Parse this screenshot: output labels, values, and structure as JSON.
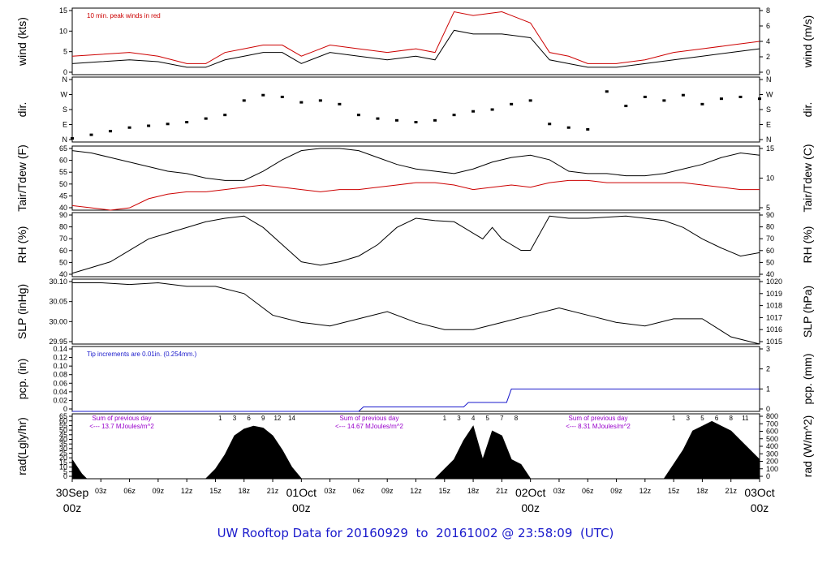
{
  "footer": {
    "prefix": "UW Rooftop Data for",
    "start": "20160929",
    "to": "to",
    "end": "20161002 @ 23:58:09",
    "tz": "(UTC)"
  },
  "colors": {
    "text_red": "#cc0000",
    "purple": "#9900cc",
    "blue": "#1a1acc"
  },
  "chart_data": [
    {
      "type": "line",
      "panel": "wind",
      "ylabel_left": "wind (kts)",
      "ylabel_right": "wind (m/s)",
      "left_ticks": [
        "0",
        "5",
        "10",
        "15"
      ],
      "right_ticks": [
        "0",
        "2",
        "4",
        "6",
        "8"
      ],
      "ylim": [
        0,
        18
      ],
      "annotation": "10 min. peak winds in red",
      "series": [
        {
          "color": "#000000",
          "x": [
            0,
            3,
            6,
            9,
            12,
            14,
            16,
            18,
            20,
            22,
            24,
            27,
            30,
            33,
            36,
            38,
            40,
            42,
            45,
            48,
            50,
            52,
            54,
            57,
            60,
            63,
            66,
            69,
            72
          ],
          "values": [
            3,
            3.5,
            4,
            3.5,
            2,
            2,
            4,
            5,
            6,
            6,
            3,
            6,
            5,
            4,
            5,
            4,
            12,
            11,
            11,
            10,
            4,
            3,
            2,
            2,
            3,
            4,
            5,
            6,
            7
          ]
        },
        {
          "color": "#cc0000",
          "name": "10 min. peak winds",
          "x": [
            0,
            3,
            6,
            9,
            12,
            14,
            16,
            18,
            20,
            22,
            24,
            27,
            30,
            33,
            36,
            38,
            40,
            42,
            45,
            48,
            50,
            52,
            54,
            57,
            60,
            63,
            66,
            69,
            72
          ],
          "values": [
            5,
            5.5,
            6,
            5,
            3,
            3,
            6,
            7,
            8,
            8,
            5,
            8,
            7,
            6,
            7,
            6,
            17,
            16,
            17,
            14,
            6,
            5,
            3,
            3,
            4,
            6,
            7,
            8,
            9
          ]
        }
      ]
    },
    {
      "type": "scatter",
      "panel": "dir",
      "ylabel_left": "dir.",
      "ylabel_right": "dir.",
      "left_ticks": [
        "N",
        "E",
        "S",
        "W",
        "N"
      ],
      "right_ticks": [
        "N",
        "E",
        "S",
        "W",
        "N"
      ],
      "ylim": [
        0,
        360
      ],
      "series": [
        {
          "color": "#000000",
          "x": [
            0,
            2,
            4,
            6,
            8,
            10,
            12,
            14,
            16,
            18,
            20,
            22,
            24,
            26,
            28,
            30,
            32,
            34,
            36,
            38,
            40,
            42,
            44,
            46,
            48,
            50,
            52,
            54,
            56,
            58,
            60,
            62,
            64,
            66,
            68,
            70,
            72
          ],
          "values": [
            20,
            40,
            60,
            80,
            90,
            100,
            110,
            130,
            150,
            230,
            260,
            250,
            220,
            230,
            210,
            150,
            130,
            120,
            110,
            120,
            150,
            170,
            180,
            210,
            230,
            100,
            80,
            70,
            280,
            200,
            250,
            230,
            260,
            210,
            240,
            250,
            240
          ]
        }
      ]
    },
    {
      "type": "line",
      "panel": "temp",
      "ylabel_left": "Tair/Tdew (F)",
      "ylabel_right": "Tair/Tdew (C)",
      "left_ticks": [
        "40",
        "45",
        "50",
        "55",
        "60",
        "65"
      ],
      "right_ticks": [
        "5",
        "10",
        "15"
      ],
      "ylim": [
        38,
        66
      ],
      "series": [
        {
          "color": "#000000",
          "name": "Tair",
          "x": [
            0,
            2,
            4,
            6,
            8,
            10,
            12,
            14,
            16,
            18,
            20,
            22,
            24,
            26,
            28,
            30,
            32,
            34,
            36,
            38,
            40,
            42,
            44,
            46,
            48,
            50,
            52,
            54,
            56,
            58,
            60,
            62,
            64,
            66,
            68,
            70,
            72
          ],
          "values": [
            64,
            63,
            61,
            59,
            57,
            55,
            54,
            52,
            51,
            51,
            55,
            60,
            64,
            65,
            65,
            64,
            61,
            58,
            56,
            55,
            54,
            56,
            59,
            61,
            62,
            60,
            55,
            54,
            54,
            53,
            53,
            54,
            56,
            58,
            61,
            63,
            62
          ]
        },
        {
          "color": "#cc0000",
          "name": "Tdew",
          "x": [
            0,
            2,
            4,
            6,
            8,
            10,
            12,
            14,
            16,
            18,
            20,
            22,
            24,
            26,
            28,
            30,
            32,
            34,
            36,
            38,
            40,
            42,
            44,
            46,
            48,
            50,
            52,
            54,
            56,
            58,
            60,
            62,
            64,
            66,
            68,
            70,
            72
          ],
          "values": [
            40,
            39,
            38,
            39,
            43,
            45,
            46,
            46,
            47,
            48,
            49,
            48,
            47,
            46,
            47,
            47,
            48,
            49,
            50,
            50,
            49,
            47,
            48,
            49,
            48,
            50,
            51,
            51,
            50,
            50,
            50,
            50,
            50,
            49,
            48,
            47,
            47
          ]
        }
      ]
    },
    {
      "type": "line",
      "panel": "rh",
      "ylabel_left": "RH (%)",
      "ylabel_right": "RH (%)",
      "left_ticks": [
        "40",
        "50",
        "60",
        "70",
        "80",
        "90"
      ],
      "right_ticks": [
        "40",
        "50",
        "60",
        "70",
        "80",
        "90"
      ],
      "ylim": [
        37,
        93
      ],
      "series": [
        {
          "color": "#000000",
          "x": [
            0,
            2,
            4,
            6,
            8,
            10,
            12,
            14,
            16,
            18,
            19,
            20,
            22,
            24,
            26,
            28,
            30,
            32,
            34,
            36,
            38,
            40,
            41,
            42,
            43,
            44,
            45,
            46,
            47,
            48,
            50,
            52,
            54,
            56,
            58,
            60,
            62,
            64,
            66,
            68,
            70,
            72
          ],
          "values": [
            40,
            45,
            50,
            60,
            70,
            75,
            80,
            85,
            88,
            90,
            85,
            80,
            65,
            50,
            47,
            50,
            55,
            65,
            80,
            88,
            86,
            85,
            80,
            75,
            70,
            80,
            70,
            65,
            60,
            60,
            90,
            88,
            88,
            89,
            90,
            88,
            86,
            80,
            70,
            62,
            55,
            58
          ]
        }
      ]
    },
    {
      "type": "line",
      "panel": "slp",
      "ylabel_left": "SLP (inHg)",
      "ylabel_right": "SLP (hPa)",
      "left_ticks": [
        "29.95",
        "30.00",
        "30.05",
        "30.10"
      ],
      "right_ticks": [
        "1015",
        "1016",
        "1017",
        "1018",
        "1019",
        "1020"
      ],
      "ylim": [
        29.95,
        30.13
      ],
      "series": [
        {
          "color": "#000000",
          "x": [
            0,
            3,
            6,
            9,
            12,
            15,
            18,
            21,
            24,
            27,
            30,
            33,
            36,
            39,
            42,
            45,
            48,
            51,
            54,
            57,
            60,
            63,
            66,
            69,
            72
          ],
          "values": [
            30.12,
            30.12,
            30.115,
            30.12,
            30.11,
            30.11,
            30.09,
            30.03,
            30.01,
            30.0,
            30.02,
            30.04,
            30.01,
            29.99,
            29.99,
            30.01,
            30.03,
            30.05,
            30.03,
            30.01,
            30.0,
            30.02,
            30.02,
            29.97,
            29.95
          ]
        }
      ]
    },
    {
      "type": "line",
      "panel": "pcp",
      "ylabel_left": "pcp. (in)",
      "ylabel_right": "pcp. (mm)",
      "left_ticks": [
        "0",
        "0.02",
        "0.04",
        "0.06",
        "0.08",
        "0.10",
        "0.12",
        "0.14"
      ],
      "right_ticks": [
        "0",
        "1",
        "2",
        "3"
      ],
      "ylim": [
        0,
        0.145
      ],
      "annotation": "Tip increments are 0.01in. (0.254mm.)",
      "series": [
        {
          "color": "#1a1acc",
          "x": [
            0,
            30,
            30.5,
            34,
            34.5,
            41,
            41.5,
            43,
            43.5,
            45.5,
            46,
            46.3,
            72
          ],
          "values": [
            0,
            0,
            0.01,
            0.01,
            0.01,
            0.01,
            0.02,
            0.02,
            0.02,
            0.02,
            0.05,
            0.05,
            0.05
          ]
        }
      ]
    },
    {
      "type": "area",
      "panel": "rad",
      "ylabel_left": "rad(Lgly/hr)",
      "ylabel_right": "rad (W/m^2)",
      "left_ticks": [
        "0",
        "5",
        "10",
        "15",
        "20",
        "25",
        "30",
        "35",
        "40",
        "45",
        "50",
        "55",
        "60",
        "65"
      ],
      "right_ticks": [
        "0",
        "100",
        "200",
        "300",
        "400",
        "500",
        "600",
        "700",
        "800"
      ],
      "ylim": [
        0,
        68
      ],
      "day_sums": [
        {
          "label": "Sum of previous day",
          "value": "<--- 13.7 MJoules/m^2"
        },
        {
          "label": "Sum of previous day",
          "value": "<--- 14.67 MJoules/m^2"
        },
        {
          "label": "Sum of previous day",
          "value": "<--- 8.31 MJoules/m^2"
        }
      ],
      "hour_marks": [
        [
          "1",
          "3",
          "6",
          "9",
          "12",
          "14"
        ],
        [
          "1",
          "3",
          "4",
          "5",
          "7",
          "8"
        ],
        [
          "1",
          "3",
          "5",
          "6",
          "8",
          "11"
        ]
      ],
      "series": [
        {
          "color": "#000000",
          "x": [
            0,
            1,
            1.5,
            14,
            15,
            16,
            17,
            18,
            19,
            20,
            21,
            22,
            23,
            24,
            38,
            39,
            40,
            41,
            42,
            43,
            44,
            45,
            46,
            47,
            48,
            62,
            63,
            64,
            65,
            66,
            67,
            68,
            69,
            70,
            71,
            72
          ],
          "values": [
            20,
            5,
            0,
            0,
            10,
            25,
            45,
            52,
            55,
            53,
            45,
            30,
            12,
            0,
            0,
            10,
            20,
            40,
            55,
            20,
            50,
            45,
            20,
            15,
            0,
            0,
            15,
            30,
            50,
            55,
            60,
            55,
            50,
            40,
            30,
            20
          ]
        }
      ]
    }
  ],
  "x_axis": {
    "hours": [
      0,
      3,
      6,
      9,
      12,
      15,
      18,
      21,
      24,
      27,
      30,
      33,
      36,
      39,
      42,
      45,
      48,
      51,
      54,
      57,
      60,
      63,
      66,
      69,
      72
    ],
    "labels": [
      "30Sep",
      "03z",
      "06z",
      "09z",
      "12z",
      "15z",
      "18z",
      "21z",
      "01Oct",
      "03z",
      "06z",
      "09z",
      "12z",
      "15z",
      "18z",
      "21z",
      "02Oct",
      "03z",
      "06z",
      "09z",
      "12z",
      "15z",
      "18z",
      "21z",
      "03Oct"
    ],
    "day_sub": "00z"
  }
}
